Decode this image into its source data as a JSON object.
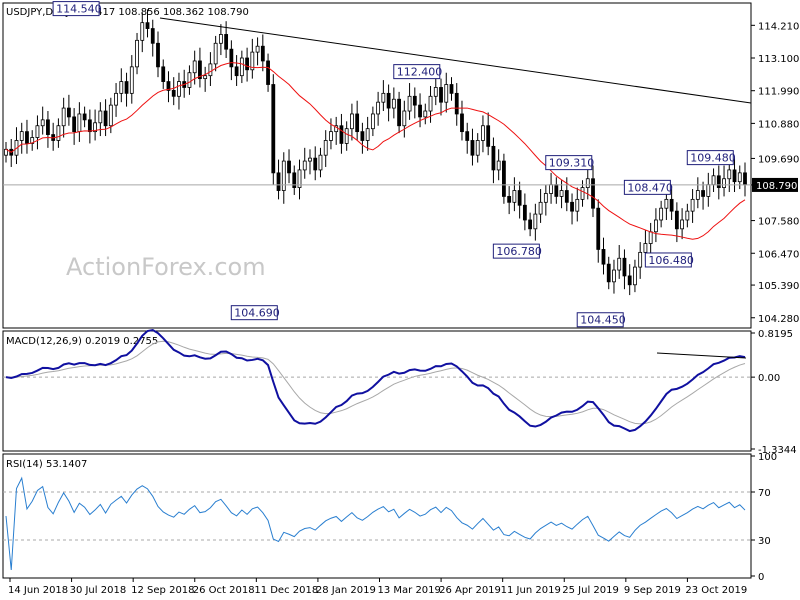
{
  "chart_data": [
    {
      "type": "candlestick",
      "title": "USDJPY,Daily 108.417 108.856 108.362 108.790",
      "watermark": "ActionForex.com",
      "ylim": [
        104.0,
        114.9
      ],
      "y_ticks": [
        "114.210",
        "113.100",
        "111.990",
        "110.880",
        "109.690",
        "108.790",
        "107.580",
        "106.470",
        "105.390",
        "104.280"
      ],
      "current_price": "108.790",
      "x_ticks": [
        "14 Jun 2018",
        "30 Jul 2018",
        "12 Sep 2018",
        "26 Oct 2018",
        "11 Dec 2018",
        "28 Jan 2019",
        "13 Mar 2019",
        "26 Apr 2019",
        "11 Jun 2019",
        "25 Jul 2019",
        "9 Sep 2019",
        "23 Oct 2019"
      ],
      "annotations": [
        {
          "label": "114.540",
          "value": 114.54,
          "x": 17
        },
        {
          "label": "104.690",
          "value": 104.69,
          "x": 51
        },
        {
          "label": "112.400",
          "value": 112.4,
          "x": 82
        },
        {
          "label": "106.780",
          "value": 106.78,
          "x": 101
        },
        {
          "label": "109.310",
          "value": 109.31,
          "x": 111
        },
        {
          "label": "104.450",
          "value": 104.45,
          "x": 117
        },
        {
          "label": "108.470",
          "value": 108.47,
          "x": 126
        },
        {
          "label": "106.480",
          "value": 106.48,
          "x": 130
        },
        {
          "label": "109.480",
          "value": 109.48,
          "x": 138
        }
      ],
      "x_count": 142,
      "close": [
        110.0,
        109.8,
        110.3,
        110.6,
        110.2,
        110.4,
        110.8,
        111.0,
        110.5,
        110.3,
        110.8,
        111.4,
        111.1,
        110.6,
        111.2,
        111.0,
        110.6,
        110.9,
        111.3,
        110.8,
        111.5,
        111.9,
        112.3,
        111.9,
        112.8,
        113.7,
        114.3,
        114.1,
        113.6,
        112.8,
        112.3,
        112.0,
        111.8,
        112.3,
        112.1,
        112.6,
        113.0,
        112.4,
        112.5,
        112.9,
        113.6,
        113.9,
        113.4,
        112.8,
        112.5,
        113.1,
        112.7,
        113.3,
        113.5,
        113.0,
        112.2,
        109.2,
        108.6,
        109.6,
        109.2,
        108.7,
        109.3,
        109.6,
        109.7,
        109.3,
        109.8,
        110.3,
        110.6,
        110.8,
        110.2,
        110.7,
        111.2,
        110.6,
        110.3,
        110.7,
        111.2,
        111.6,
        111.9,
        111.4,
        111.7,
        110.8,
        111.3,
        111.8,
        111.5,
        111.1,
        111.3,
        111.8,
        112.1,
        111.6,
        112.2,
        111.9,
        111.2,
        110.6,
        110.3,
        109.8,
        110.3,
        110.8,
        110.1,
        109.3,
        109.6,
        108.4,
        108.2,
        108.6,
        108.1,
        107.6,
        107.3,
        107.8,
        108.2,
        108.5,
        108.8,
        108.4,
        108.6,
        108.2,
        107.9,
        108.3,
        108.7,
        109.0,
        108.0,
        106.6,
        106.1,
        105.5,
        105.9,
        106.3,
        105.7,
        105.4,
        106.0,
        106.5,
        106.8,
        107.2,
        107.6,
        108.0,
        108.3,
        107.9,
        107.3,
        107.6,
        107.9,
        108.3,
        108.6,
        108.4,
        108.8,
        109.1,
        108.7,
        109.0,
        109.3,
        108.9,
        109.2,
        108.8
      ],
      "rsi": {
        "label": "RSI(14) 53.1407",
        "ylim": [
          0,
          100
        ],
        "y_ticks": [
          "100",
          "70",
          "30",
          "0"
        ],
        "levels": [
          70,
          30
        ]
      },
      "macd": {
        "label": "MACD(12,26,9) 0.2019 0.2755",
        "y_ticks": [
          "0.8195",
          "0.00",
          "-1.3344"
        ],
        "ylim": [
          -1.3344,
          0.8195
        ]
      }
    }
  ]
}
